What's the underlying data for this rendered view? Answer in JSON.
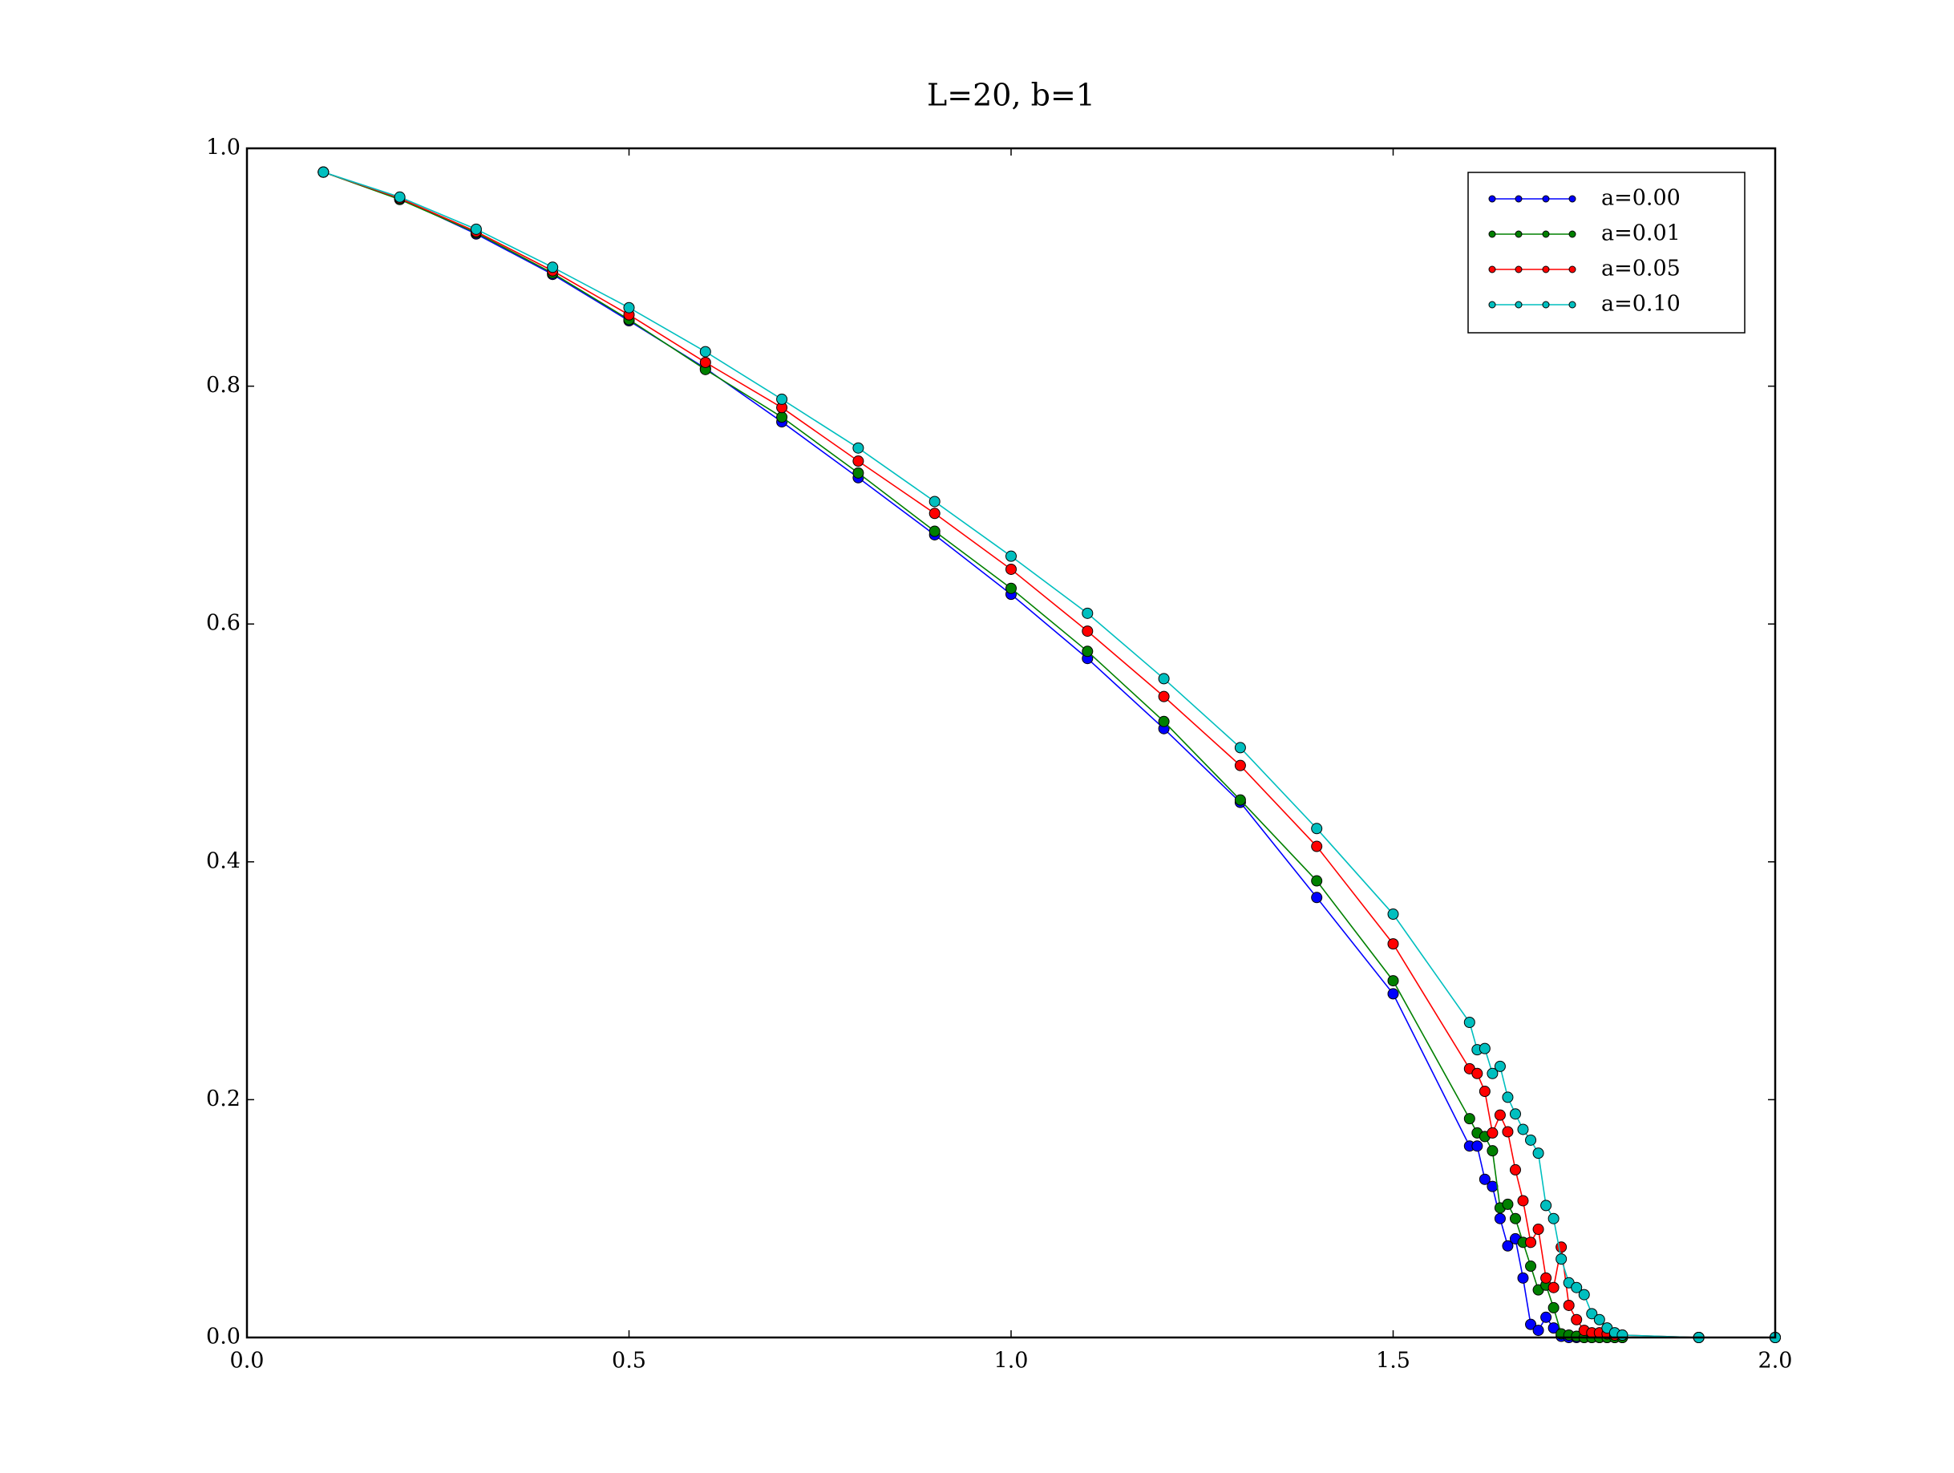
{
  "chart_data": {
    "type": "line",
    "title": "L=20, b=1",
    "x": [
      0.1,
      0.2,
      0.3,
      0.4,
      0.5,
      0.6,
      0.7,
      0.8,
      0.9,
      1.0,
      1.1,
      1.2,
      1.3,
      1.4,
      1.5,
      1.6,
      1.61,
      1.62,
      1.63,
      1.64,
      1.65,
      1.66,
      1.67,
      1.68,
      1.69,
      1.7,
      1.71,
      1.72,
      1.73,
      1.74,
      1.75,
      1.76,
      1.77,
      1.78,
      1.79,
      1.8,
      1.9,
      2.0
    ],
    "series": [
      {
        "name": "a=0.00",
        "color": "#0000ff",
        "values": [
          0.98,
          0.958,
          0.928,
          0.894,
          0.855,
          0.815,
          0.77,
          0.723,
          0.675,
          0.625,
          0.571,
          0.512,
          0.45,
          0.37,
          0.289,
          0.161,
          0.161,
          0.133,
          0.127,
          0.1,
          0.077,
          0.083,
          0.05,
          0.011,
          0.006,
          0.017,
          0.008,
          0.001,
          0,
          0,
          0,
          0,
          0,
          0,
          0,
          0,
          0,
          0
        ]
      },
      {
        "name": "a=0.01",
        "color": "#008000",
        "values": [
          0.98,
          0.957,
          0.929,
          0.895,
          0.856,
          0.814,
          0.774,
          0.727,
          0.678,
          0.63,
          0.577,
          0.518,
          0.452,
          0.384,
          0.3,
          0.184,
          0.172,
          0.169,
          0.157,
          0.109,
          0.112,
          0.1,
          0.08,
          0.06,
          0.04,
          0.044,
          0.025,
          0.003,
          0.002,
          0.001,
          0,
          0,
          0,
          0,
          0,
          0,
          0,
          0
        ]
      },
      {
        "name": "a=0.05",
        "color": "#ff0000",
        "values": [
          0.98,
          0.958,
          0.93,
          0.897,
          0.86,
          0.82,
          0.782,
          0.737,
          0.693,
          0.646,
          0.594,
          0.539,
          0.481,
          0.413,
          0.331,
          0.226,
          0.222,
          0.207,
          0.172,
          0.187,
          0.173,
          0.141,
          0.115,
          0.08,
          0.091,
          0.05,
          0.042,
          0.076,
          0.027,
          0.015,
          0.006,
          0.004,
          0.004,
          0.003,
          0.002,
          0.002,
          0,
          0
        ]
      },
      {
        "name": "a=0.10",
        "color": "#00bfbf",
        "values": [
          0.98,
          0.959,
          0.932,
          0.9,
          0.866,
          0.829,
          0.789,
          0.748,
          0.703,
          0.657,
          0.609,
          0.554,
          0.496,
          0.428,
          0.356,
          0.265,
          0.242,
          0.243,
          0.222,
          0.228,
          0.202,
          0.188,
          0.175,
          0.166,
          0.155,
          0.111,
          0.1,
          0.066,
          0.046,
          0.042,
          0.036,
          0.02,
          0.015,
          0.008,
          0.004,
          0.002,
          0,
          0
        ]
      }
    ],
    "xlim": [
      0,
      2
    ],
    "ylim": [
      0,
      1
    ],
    "xticks": [
      {
        "value": 0,
        "label": "0.0"
      },
      {
        "value": 0.5,
        "label": "0.5"
      },
      {
        "value": 1,
        "label": "1.0"
      },
      {
        "value": 1.5,
        "label": "1.5"
      },
      {
        "value": 2,
        "label": "2.0"
      }
    ],
    "yticks": [
      {
        "value": 0,
        "label": "0.0"
      },
      {
        "value": 0.2,
        "label": "0.2"
      },
      {
        "value": 0.4,
        "label": "0.4"
      },
      {
        "value": 0.6,
        "label": "0.6"
      },
      {
        "value": 0.8,
        "label": "0.8"
      },
      {
        "value": 1,
        "label": "1.0"
      }
    ],
    "legend": "upper right",
    "grid": false
  }
}
